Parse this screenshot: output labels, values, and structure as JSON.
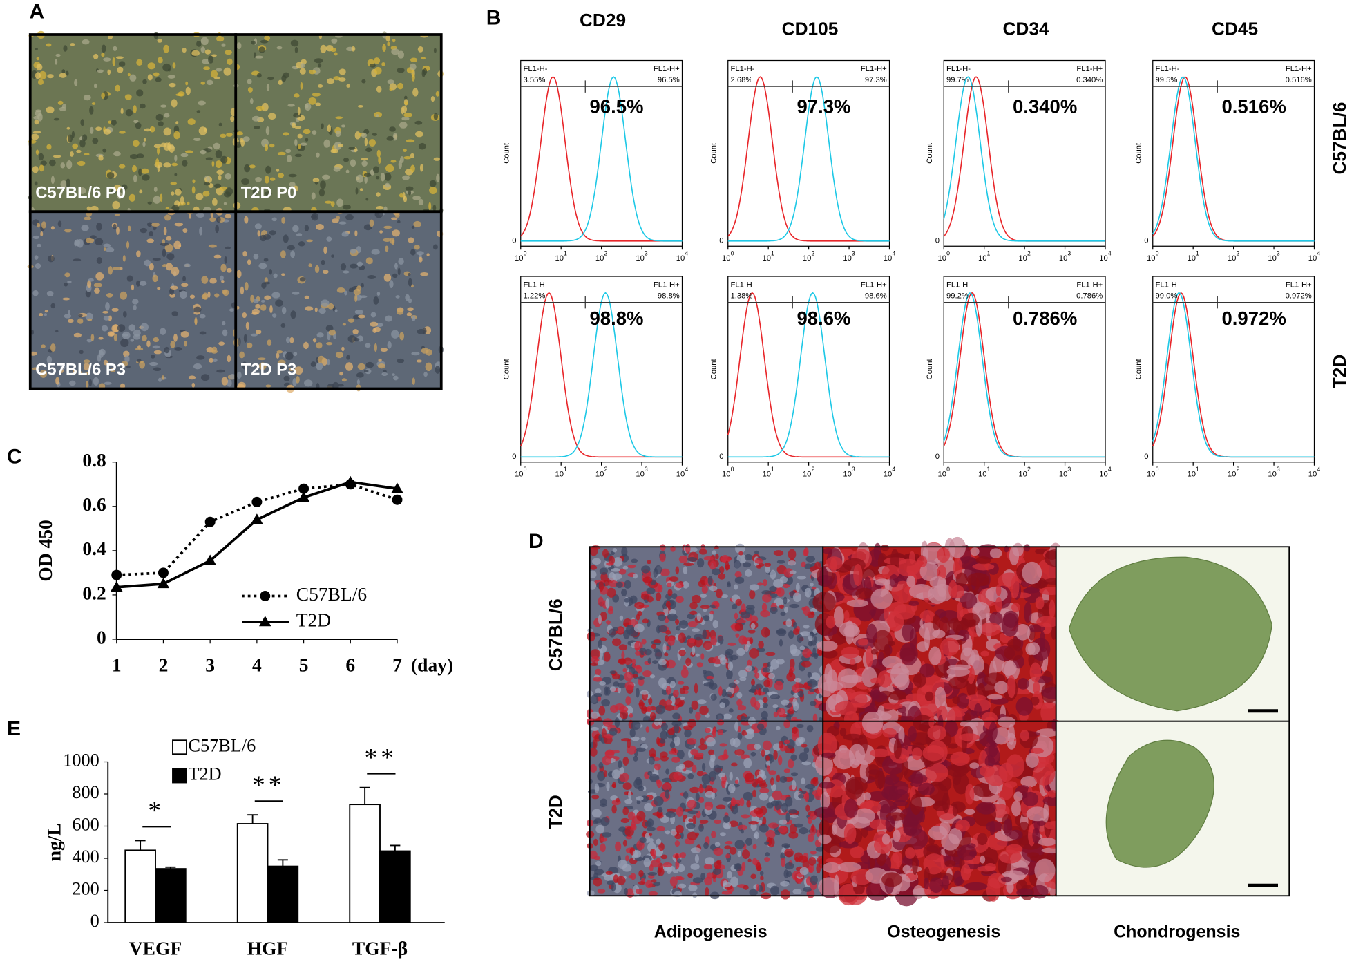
{
  "panel_labels": [
    "A",
    "B",
    "C",
    "D",
    "E"
  ],
  "panel_a": {
    "images": [
      "C57BL/6 P0",
      "T2D P0",
      "C57BL/6 P3",
      "T2D P3"
    ]
  },
  "panel_b": {
    "markers": [
      "CD29",
      "CD105",
      "CD34",
      "CD45"
    ],
    "rows": [
      "C57BL/6",
      "T2D"
    ],
    "gate_labels": [
      "FL1-H-",
      "FL1-H+"
    ],
    "y_label": "Count",
    "y_tick_label": "0",
    "x_tick_base": "10",
    "x_tick_exponents": [
      "0",
      "1",
      "2",
      "3",
      "4"
    ],
    "histograms": [
      [
        {
          "neg_label": "3.55%",
          "pos_label": "96.5%",
          "result": "96.5%",
          "red_peak": 0.8,
          "blue_peak": 2.3
        },
        {
          "neg_label": "2.68%",
          "pos_label": "97.3%",
          "result": "97.3%",
          "red_peak": 0.8,
          "blue_peak": 2.2
        },
        {
          "neg_label": "99.7%",
          "pos_label": "0.340%",
          "result": "0.340%",
          "red_peak": 0.8,
          "blue_peak": 0.6
        },
        {
          "neg_label": "99.5%",
          "pos_label": "0.516%",
          "result": "0.516%",
          "red_peak": 0.8,
          "blue_peak": 0.75
        }
      ],
      [
        {
          "neg_label": "1.22%",
          "pos_label": "98.8%",
          "result": "98.8%",
          "red_peak": 0.7,
          "blue_peak": 2.1
        },
        {
          "neg_label": "1.38%",
          "pos_label": "98.6%",
          "result": "98.6%",
          "red_peak": 0.6,
          "blue_peak": 2.1
        },
        {
          "neg_label": "99.2%",
          "pos_label": "0.786%",
          "result": "0.786%",
          "red_peak": 0.7,
          "blue_peak": 0.65
        },
        {
          "neg_label": "99.0%",
          "pos_label": "0.972%",
          "result": "0.972%",
          "red_peak": 0.7,
          "blue_peak": 0.65
        }
      ]
    ]
  },
  "panel_d": {
    "rows": [
      "C57BL/6",
      "T2D"
    ],
    "columns": [
      "Adipogenesis",
      "Osteogenesis",
      "Chondrogensis"
    ]
  },
  "chart_data": [
    {
      "type": "line",
      "y_label": "OD 450",
      "x_label": "(day)",
      "x": [
        1,
        2,
        3,
        4,
        5,
        6,
        7
      ],
      "xlim": [
        1,
        7
      ],
      "xticks": [
        1,
        2,
        3,
        4,
        5,
        6,
        7
      ],
      "ylim": [
        0,
        0.8
      ],
      "yticks": [
        0,
        0.2,
        0.4,
        0.6,
        0.8
      ],
      "series": [
        {
          "name": "C57BL/6",
          "color": "#000000",
          "marker": "circle",
          "dash": "dotted",
          "values": [
            0.29,
            0.3,
            0.53,
            0.62,
            0.68,
            0.7,
            0.63
          ]
        },
        {
          "name": "T2D",
          "color": "#000000",
          "marker": "triangle",
          "dash": "solid",
          "values": [
            0.235,
            0.25,
            0.355,
            0.54,
            0.64,
            0.71,
            0.68
          ]
        }
      ]
    },
    {
      "type": "bar",
      "y_label": "ng/L",
      "categories": [
        "VEGF",
        "HGF",
        "TGF-β"
      ],
      "ylim": [
        0,
        1000
      ],
      "yticks": [
        0,
        200,
        400,
        600,
        800,
        1000
      ],
      "significance": [
        "*",
        "**",
        "**"
      ],
      "series": [
        {
          "name": "C57BL/6",
          "color": "#ffffff",
          "values": [
            450,
            615,
            735
          ],
          "errors": [
            60,
            55,
            105
          ]
        },
        {
          "name": "T2D",
          "color": "#000000",
          "values": [
            335,
            350,
            445
          ],
          "errors": [
            10,
            40,
            35
          ]
        }
      ]
    }
  ]
}
